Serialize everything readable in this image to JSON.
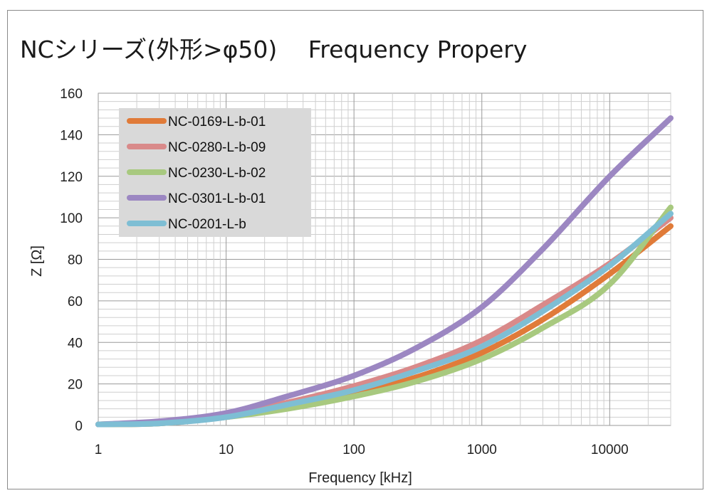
{
  "chart_data": {
    "type": "line",
    "title": "NCシリーズ(外形>φ50)　 Frequency Propery",
    "xlabel": "Frequency [kHz]",
    "ylabel": "Z [Ω]",
    "xscale": "log",
    "xlim": [
      1,
      30000
    ],
    "ylim": [
      0,
      160
    ],
    "x_ticks": [
      "1",
      "10",
      "100",
      "1000",
      "10000"
    ],
    "y_ticks": [
      "0",
      "20",
      "40",
      "60",
      "80",
      "100",
      "120",
      "140",
      "160"
    ],
    "grid": true,
    "legend_position": "top-left",
    "series": [
      {
        "name": "NC-0169-L-b-01",
        "color": "#e07b39",
        "x": [
          1,
          3,
          10,
          30,
          100,
          300,
          1000,
          3000,
          10000,
          30000
        ],
        "y": [
          0.5,
          1,
          4,
          9,
          15,
          23,
          35,
          51,
          73,
          96
        ]
      },
      {
        "name": "NC-0280-L-b-09",
        "color": "#d98a8a",
        "x": [
          1,
          3,
          10,
          30,
          100,
          300,
          1000,
          3000,
          10000,
          30000
        ],
        "y": [
          0.5,
          1.5,
          5,
          11,
          19,
          28,
          41,
          58,
          78,
          100
        ]
      },
      {
        "name": "NC-0230-L-b-02",
        "color": "#a8c97f",
        "x": [
          1,
          3,
          10,
          30,
          100,
          300,
          1000,
          3000,
          10000,
          30000
        ],
        "y": [
          0.5,
          1,
          4,
          8,
          14,
          21,
          32,
          47,
          68,
          105
        ]
      },
      {
        "name": "NC-0301-L-b-01",
        "color": "#9c87c2",
        "x": [
          1,
          3,
          10,
          30,
          100,
          300,
          1000,
          3000,
          10000,
          30000
        ],
        "y": [
          0.5,
          2,
          6,
          14,
          24,
          37,
          57,
          85,
          120,
          148
        ]
      },
      {
        "name": "NC-0201-L-b",
        "color": "#7ebed4",
        "x": [
          1,
          3,
          10,
          30,
          100,
          300,
          1000,
          3000,
          10000,
          30000
        ],
        "y": [
          0.5,
          1,
          4,
          10,
          17,
          26,
          38,
          55,
          77,
          102
        ]
      }
    ]
  }
}
